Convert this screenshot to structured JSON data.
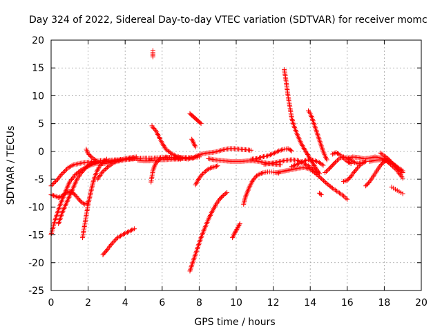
{
  "chart_data": {
    "type": "scatter",
    "title": "Day 324 of 2022, Sidereal Day-to-day VTEC variation (SDTVAR) for receiver momc",
    "xlabel": "GPS time / hours",
    "ylabel": "SDTVAR / TECUs",
    "xlim": [
      0,
      20
    ],
    "ylim": [
      -25,
      20
    ],
    "x_ticks": [
      0,
      2,
      4,
      6,
      8,
      10,
      12,
      14,
      16,
      18,
      20
    ],
    "y_ticks": [
      -25,
      -20,
      -15,
      -10,
      -5,
      0,
      5,
      10,
      15,
      20
    ],
    "grid": true,
    "marker": "+",
    "color": "#ff0000",
    "tracks": [
      {
        "x": [
          0.0,
          0.3,
          0.6,
          0.9,
          1.2,
          1.5,
          1.8,
          2.1,
          2.5,
          3.0,
          3.5,
          4.0,
          4.5,
          5.0,
          5.5,
          6.0,
          6.5,
          7.0,
          7.5,
          8.0
        ],
        "y": [
          -6.2,
          -5.2,
          -4.0,
          -3.0,
          -2.4,
          -2.2,
          -2.0,
          -1.9,
          -1.7,
          -1.6,
          -1.5,
          -1.4,
          -1.3,
          -1.2,
          -1.2,
          -1.1,
          -1.1,
          -1.1,
          -1.1,
          -1.0
        ]
      },
      {
        "x": [
          0.0,
          0.2,
          0.5,
          0.8,
          1.0,
          1.3,
          1.6,
          1.9,
          2.2,
          2.5,
          2.8,
          3.1,
          3.4,
          3.7
        ],
        "y": [
          -15.0,
          -12.5,
          -9.5,
          -7.0,
          -5.5,
          -4.2,
          -3.4,
          -2.8,
          -2.4,
          -2.1,
          -1.9,
          -1.8,
          -1.7,
          -1.7
        ]
      },
      {
        "x": [
          0.0,
          0.2,
          0.4,
          0.6,
          0.8,
          1.0,
          1.2,
          1.4,
          1.6,
          1.8,
          1.95
        ],
        "y": [
          -7.8,
          -8.0,
          -8.3,
          -8.0,
          -7.5,
          -7.2,
          -7.5,
          -8.2,
          -9.0,
          -9.5,
          -9.3
        ]
      },
      {
        "x": [
          0.4,
          0.6,
          0.8,
          1.0,
          1.2,
          1.4,
          1.6,
          1.8,
          2.0,
          2.2,
          2.4
        ],
        "y": [
          -13.0,
          -11.0,
          -9.5,
          -8.0,
          -6.5,
          -5.0,
          -4.0,
          -3.2,
          -2.6,
          -2.2,
          -1.9
        ]
      },
      {
        "x": [
          1.7,
          1.8,
          1.9,
          2.0,
          2.1,
          2.2,
          2.3,
          2.4,
          2.5,
          2.6,
          2.7,
          2.8,
          2.9,
          3.0
        ],
        "y": [
          -15.5,
          -13.5,
          -11.5,
          -9.5,
          -8.0,
          -6.5,
          -5.2,
          -4.2,
          -3.4,
          -2.8,
          -2.3,
          -1.9,
          -1.6,
          -1.4
        ]
      },
      {
        "x": [
          1.9,
          2.0,
          2.2,
          2.5,
          2.8,
          3.1,
          3.4,
          3.7,
          4.0,
          4.3,
          4.6
        ],
        "y": [
          0.4,
          -0.4,
          -1.1,
          -1.8,
          -2.2,
          -2.1,
          -1.8,
          -1.7,
          -1.5,
          -1.4,
          -1.3
        ]
      },
      {
        "x": [
          2.8,
          3.0,
          3.3,
          3.6,
          3.9,
          4.2,
          4.5
        ],
        "y": [
          -18.6,
          -17.8,
          -16.5,
          -15.5,
          -14.9,
          -14.4,
          -13.9
        ]
      },
      {
        "x": [
          2.5,
          2.8,
          3.1,
          3.4,
          3.7,
          4.0,
          4.3,
          4.6
        ],
        "y": [
          -5.0,
          -3.6,
          -2.7,
          -2.0,
          -1.6,
          -1.3,
          -1.1,
          -1.0
        ]
      },
      {
        "x": [
          5.4,
          5.5,
          5.6,
          5.7,
          5.8,
          5.9,
          6.0,
          6.2,
          6.4,
          6.6,
          6.8,
          7.0
        ],
        "y": [
          -5.5,
          -3.5,
          -2.5,
          -2.0,
          -1.6,
          -1.3,
          -1.1,
          -1.0,
          -1.1,
          -1.2,
          -1.3,
          -1.4
        ]
      },
      {
        "x": [
          5.45,
          5.5,
          5.6,
          5.7,
          5.8,
          6.0,
          6.2,
          6.5,
          6.8,
          7.1,
          7.4
        ],
        "y": [
          4.6,
          4.3,
          4.0,
          3.5,
          2.8,
          1.5,
          0.4,
          -0.4,
          -0.9,
          -1.2,
          -1.4
        ]
      },
      {
        "x": [
          5.5,
          5.5,
          5.5
        ],
        "y": [
          18.1,
          17.5,
          17.0
        ]
      },
      {
        "x": [
          4.7,
          5.0,
          5.3,
          5.6,
          5.9,
          6.2,
          6.5,
          6.8,
          7.1,
          7.4,
          7.7
        ],
        "y": [
          -1.6,
          -1.7,
          -1.7,
          -1.6,
          -1.5,
          -1.5,
          -1.4,
          -1.4,
          -1.3,
          -1.3,
          -1.2
        ]
      },
      {
        "x": [
          7.5,
          7.6,
          7.7,
          7.8,
          7.9,
          8.0,
          8.1
        ],
        "y": [
          6.8,
          6.5,
          6.2,
          5.9,
          5.6,
          5.3,
          5.0
        ]
      },
      {
        "x": [
          7.5,
          7.7,
          7.9,
          8.1,
          8.3,
          8.5,
          8.7,
          8.9,
          9.1,
          9.3,
          9.5
        ],
        "y": [
          -21.5,
          -19.5,
          -17.5,
          -15.5,
          -13.8,
          -12.2,
          -10.8,
          -9.6,
          -8.6,
          -7.9,
          -7.4
        ]
      },
      {
        "x": [
          7.8,
          8.0,
          8.2,
          8.4,
          8.6,
          8.8,
          9.0
        ],
        "y": [
          -6.0,
          -4.8,
          -4.0,
          -3.4,
          -3.0,
          -2.8,
          -2.6
        ]
      },
      {
        "x": [
          7.6,
          7.7,
          7.8
        ],
        "y": [
          2.2,
          1.5,
          0.8
        ]
      },
      {
        "x": [
          7.8,
          8.1,
          8.4,
          8.7,
          9.0,
          9.3,
          9.6,
          9.9,
          10.2,
          10.5,
          10.8
        ],
        "y": [
          -0.9,
          -0.5,
          -0.3,
          -0.2,
          0.0,
          0.3,
          0.5,
          0.5,
          0.4,
          0.3,
          0.2
        ]
      },
      {
        "x": [
          8.5,
          8.8,
          9.1,
          9.4,
          9.7,
          10.0,
          10.3,
          10.6,
          10.9,
          11.2,
          11.5,
          11.8,
          12.1,
          12.4
        ],
        "y": [
          -1.3,
          -1.5,
          -1.6,
          -1.7,
          -1.8,
          -1.8,
          -1.8,
          -1.7,
          -1.7,
          -1.8,
          -2.0,
          -2.2,
          -2.3,
          -2.4
        ]
      },
      {
        "x": [
          9.8,
          9.9,
          10.0,
          10.1,
          10.2
        ],
        "y": [
          -15.5,
          -14.8,
          -14.2,
          -13.6,
          -13.0
        ]
      },
      {
        "x": [
          10.4,
          10.5,
          10.7,
          10.9,
          11.1,
          11.3,
          11.5,
          11.7,
          11.9,
          12.1,
          12.3
        ],
        "y": [
          -9.5,
          -8.2,
          -6.5,
          -5.2,
          -4.4,
          -4.0,
          -3.8,
          -3.7,
          -3.7,
          -3.8,
          -3.9
        ]
      },
      {
        "x": [
          10.8,
          11.1,
          11.4,
          11.7,
          12.0,
          12.3,
          12.6,
          12.8,
          13.0
        ],
        "y": [
          -1.4,
          -1.3,
          -1.0,
          -0.8,
          -0.4,
          0.1,
          0.4,
          0.5,
          0.1
        ]
      },
      {
        "x": [
          11.5,
          11.8,
          12.1,
          12.4,
          12.7,
          13.0,
          13.3,
          13.6,
          13.9,
          14.2,
          14.5
        ],
        "y": [
          -2.3,
          -2.2,
          -2.0,
          -1.8,
          -1.6,
          -1.5,
          -1.6,
          -2.0,
          -2.6,
          -3.3,
          -4.0
        ]
      },
      {
        "x": [
          12.6,
          12.7,
          12.8,
          12.9,
          13.0,
          13.1,
          13.3,
          13.5,
          13.7,
          13.9,
          14.1,
          14.3,
          14.5
        ],
        "y": [
          14.7,
          12.5,
          10.0,
          8.0,
          6.0,
          4.8,
          3.0,
          1.5,
          0.3,
          -0.8,
          -1.9,
          -3.0,
          -4.0
        ]
      },
      {
        "x": [
          12.2,
          12.5,
          12.8,
          13.1,
          13.4,
          13.7,
          14.0,
          14.3,
          14.6,
          14.9,
          15.2,
          15.5,
          15.8,
          16.0
        ],
        "y": [
          -3.8,
          -3.6,
          -3.4,
          -3.2,
          -3.0,
          -2.9,
          -3.2,
          -4.0,
          -4.9,
          -5.8,
          -6.6,
          -7.3,
          -8.0,
          -8.6
        ]
      },
      {
        "x": [
          13.0,
          13.3,
          13.6,
          13.9,
          14.2,
          14.5,
          14.7
        ],
        "y": [
          -2.7,
          -2.3,
          -1.8,
          -1.5,
          -1.6,
          -2.0,
          -2.5
        ]
      },
      {
        "x": [
          13.9,
          14.0,
          14.1,
          14.2,
          14.3,
          14.4,
          14.5,
          14.6,
          14.7,
          14.8,
          14.9
        ],
        "y": [
          7.3,
          6.8,
          6.0,
          5.0,
          4.0,
          3.0,
          2.0,
          1.0,
          0.0,
          -0.8,
          -1.5
        ]
      },
      {
        "x": [
          14.5,
          14.6
        ],
        "y": [
          -7.5,
          -7.8
        ]
      },
      {
        "x": [
          14.8,
          15.0,
          15.2,
          15.4,
          15.6,
          15.8,
          16.0,
          16.2,
          16.4,
          16.6,
          16.8
        ],
        "y": [
          -3.8,
          -3.2,
          -2.5,
          -1.8,
          -1.2,
          -1.0,
          -1.2,
          -1.6,
          -2.0,
          -2.2,
          -2.0
        ]
      },
      {
        "x": [
          15.2,
          15.4,
          15.6,
          15.8,
          16.0,
          16.2
        ],
        "y": [
          -0.5,
          -0.2,
          -0.6,
          -1.2,
          -1.8,
          -2.2
        ]
      },
      {
        "x": [
          16.0,
          16.3,
          16.6,
          16.9,
          17.2,
          17.5,
          17.8,
          18.1,
          18.4,
          18.7,
          19.0
        ],
        "y": [
          -1.2,
          -1.0,
          -1.1,
          -1.3,
          -1.2,
          -1.0,
          -1.2,
          -1.5,
          -2.0,
          -2.8,
          -3.5
        ]
      },
      {
        "x": [
          15.8,
          16.0,
          16.2,
          16.4,
          16.6,
          16.8,
          17.0
        ],
        "y": [
          -5.4,
          -5.2,
          -4.5,
          -3.6,
          -2.8,
          -2.2,
          -1.8
        ]
      },
      {
        "x": [
          17.0,
          17.2,
          17.4,
          17.6,
          17.8,
          18.0,
          18.2
        ],
        "y": [
          -6.2,
          -5.5,
          -4.5,
          -3.5,
          -2.5,
          -1.8,
          -1.5
        ]
      },
      {
        "x": [
          17.2,
          17.5,
          17.8,
          18.1,
          18.4,
          18.7,
          19.0
        ],
        "y": [
          -1.8,
          -1.6,
          -1.5,
          -1.7,
          -2.5,
          -3.5,
          -4.8
        ]
      },
      {
        "x": [
          17.8,
          18.0,
          18.2,
          18.4,
          18.6,
          18.8,
          19.0
        ],
        "y": [
          -0.3,
          -0.8,
          -1.3,
          -2.0,
          -2.6,
          -3.2,
          -3.8
        ]
      },
      {
        "x": [
          18.4,
          18.5,
          18.6,
          18.7,
          18.8,
          18.9,
          19.0
        ],
        "y": [
          -6.4,
          -6.6,
          -6.8,
          -7.0,
          -7.2,
          -7.4,
          -7.6
        ]
      }
    ]
  }
}
